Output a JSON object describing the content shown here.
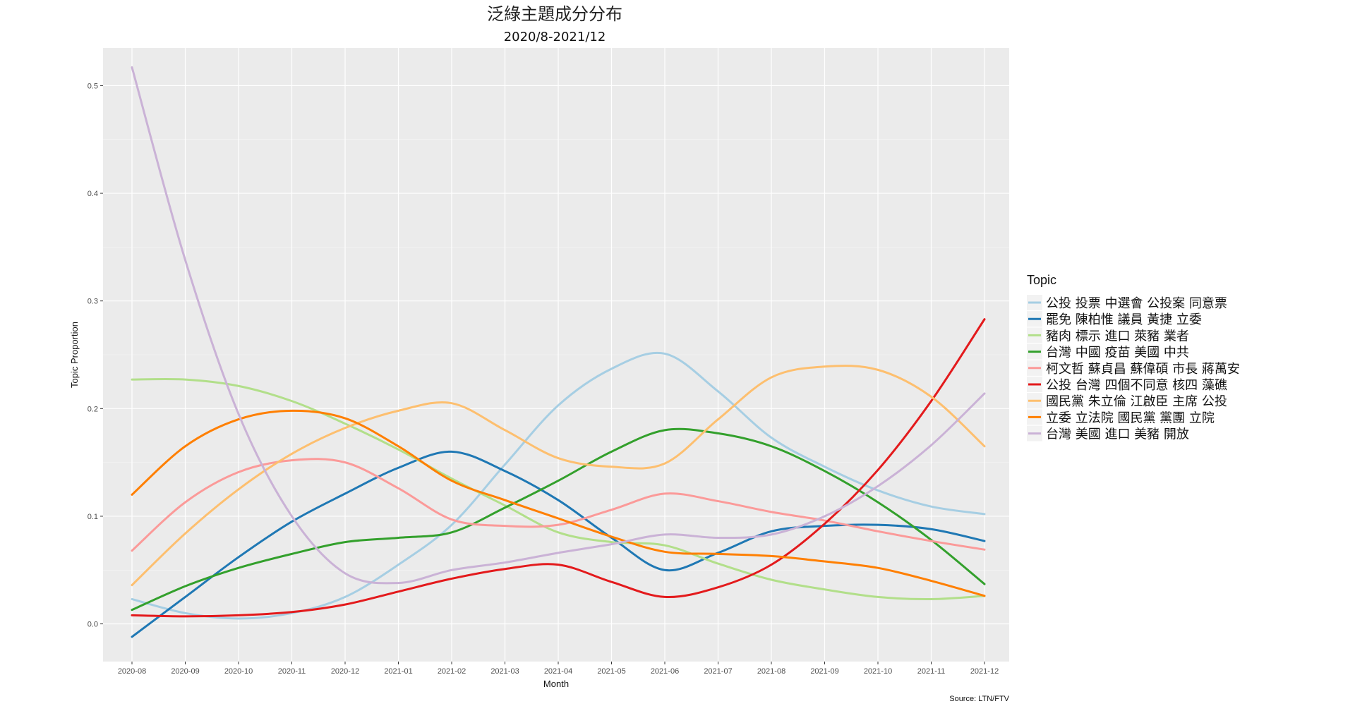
{
  "chart_data": {
    "type": "line",
    "title": "泛綠主題成分分布",
    "subtitle": "2020/8-2021/12",
    "xlabel": "Month",
    "ylabel": "Topic Proportion",
    "caption": "Source: LTN/FTV",
    "legend_title": "Topic",
    "legend_position": "right",
    "grid": true,
    "ylim": [
      -0.035,
      0.535
    ],
    "yticks": [
      "0.0",
      "0.1",
      "0.2",
      "0.3",
      "0.4",
      "0.5"
    ],
    "categories": [
      "2020-08",
      "2020-09",
      "2020-10",
      "2020-11",
      "2020-12",
      "2021-01",
      "2021-02",
      "2021-03",
      "2021-04",
      "2021-05",
      "2021-06",
      "2021-07",
      "2021-08",
      "2021-09",
      "2021-10",
      "2021-11",
      "2021-12"
    ],
    "series": [
      {
        "name": "公投 投票 中選會 公投案 同意票",
        "color": "#a6cee3",
        "values": [
          0.023,
          0.01,
          0.005,
          0.01,
          0.025,
          0.055,
          0.092,
          0.148,
          0.203,
          0.237,
          0.251,
          0.216,
          0.173,
          0.146,
          0.124,
          0.109,
          0.102
        ]
      },
      {
        "name": "罷免 陳柏惟 議員 黃捷 立委",
        "color": "#1f78b4",
        "values": [
          -0.012,
          0.025,
          0.062,
          0.095,
          0.121,
          0.145,
          0.16,
          0.142,
          0.115,
          0.08,
          0.05,
          0.066,
          0.086,
          0.091,
          0.092,
          0.088,
          0.077
        ]
      },
      {
        "name": "豬肉 標示 進口 萊豬 業者",
        "color": "#b2df8a",
        "values": [
          0.227,
          0.227,
          0.221,
          0.207,
          0.186,
          0.162,
          0.135,
          0.11,
          0.085,
          0.076,
          0.073,
          0.056,
          0.041,
          0.032,
          0.025,
          0.023,
          0.026
        ]
      },
      {
        "name": "台灣 中國 疫苗 美國 中共",
        "color": "#33a02c",
        "values": [
          0.013,
          0.035,
          0.052,
          0.065,
          0.076,
          0.08,
          0.085,
          0.108,
          0.133,
          0.16,
          0.18,
          0.177,
          0.165,
          0.142,
          0.113,
          0.078,
          0.037
        ]
      },
      {
        "name": "柯文哲 蘇貞昌 蘇偉碩 市長 蔣萬安",
        "color": "#fb9a99",
        "values": [
          0.068,
          0.113,
          0.141,
          0.152,
          0.15,
          0.126,
          0.097,
          0.091,
          0.092,
          0.106,
          0.121,
          0.114,
          0.104,
          0.096,
          0.086,
          0.077,
          0.069
        ]
      },
      {
        "name": "公投 台灣 四個不同意 核四 藻礁",
        "color": "#e31a1c",
        "values": [
          0.008,
          0.007,
          0.008,
          0.011,
          0.018,
          0.03,
          0.042,
          0.051,
          0.055,
          0.039,
          0.025,
          0.034,
          0.055,
          0.093,
          0.143,
          0.207,
          0.283
        ]
      },
      {
        "name": "國民黨 朱立倫 江啟臣 主席 公投",
        "color": "#fdbf6f",
        "values": [
          0.036,
          0.084,
          0.125,
          0.158,
          0.182,
          0.198,
          0.205,
          0.18,
          0.154,
          0.146,
          0.149,
          0.19,
          0.229,
          0.239,
          0.236,
          0.211,
          0.165
        ]
      },
      {
        "name": "立委 立法院 國民黨 黨團 立院",
        "color": "#ff7f00",
        "values": [
          0.12,
          0.165,
          0.19,
          0.198,
          0.191,
          0.165,
          0.133,
          0.115,
          0.098,
          0.081,
          0.067,
          0.065,
          0.063,
          0.058,
          0.052,
          0.04,
          0.026
        ]
      },
      {
        "name": "台灣 美國 進口 美豬 開放",
        "color": "#cab2d6",
        "values": [
          0.517,
          0.338,
          0.195,
          0.1,
          0.047,
          0.038,
          0.05,
          0.057,
          0.066,
          0.074,
          0.083,
          0.08,
          0.083,
          0.1,
          0.128,
          0.166,
          0.214
        ]
      }
    ]
  }
}
